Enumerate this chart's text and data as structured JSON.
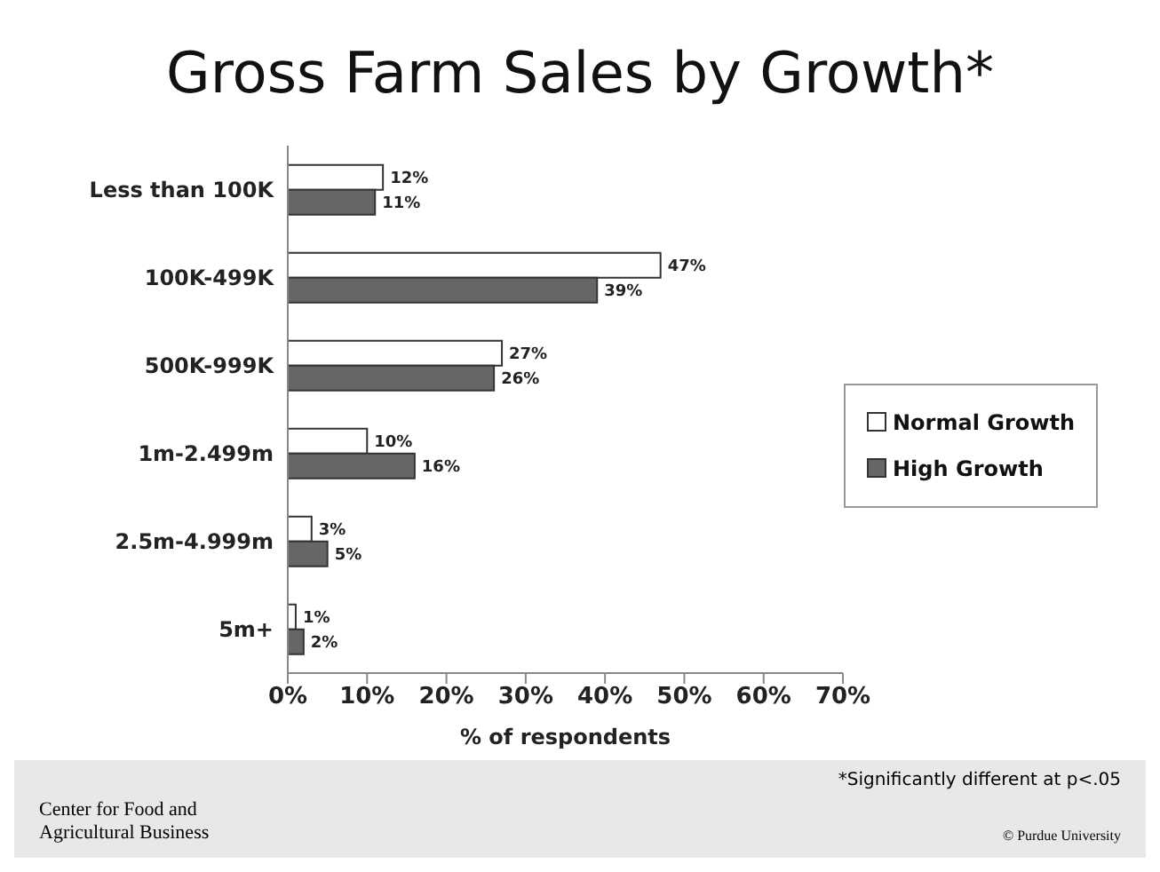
{
  "chart_data": {
    "type": "bar",
    "orientation": "horizontal",
    "title": "Gross Farm Sales by Growth*",
    "xlabel": "% of respondents",
    "categories": [
      "Less than 100K",
      "100K-499K",
      "500K-999K",
      "1m-2.499m",
      "2.5m-4.999m",
      "5m+"
    ],
    "series": [
      {
        "name": "Normal Growth",
        "color": "#ffffff",
        "values": [
          12,
          47,
          27,
          10,
          3,
          1
        ],
        "value_labels": [
          "12%",
          "47%",
          "27%",
          "10%",
          "3%",
          "1%"
        ]
      },
      {
        "name": "High Growth",
        "color": "#666666",
        "values": [
          11,
          39,
          26,
          16,
          5,
          2
        ],
        "value_labels": [
          "11%",
          "39%",
          "26%",
          "16%",
          "5%",
          "2%"
        ]
      }
    ],
    "xlim": [
      0,
      70
    ],
    "xticks": [
      {
        "value": 0,
        "label": "0%"
      },
      {
        "value": 10,
        "label": "10%"
      },
      {
        "value": 20,
        "label": "20%"
      },
      {
        "value": 30,
        "label": "30%"
      },
      {
        "value": 40,
        "label": "40%"
      },
      {
        "value": 50,
        "label": "50%"
      },
      {
        "value": 60,
        "label": "60%"
      },
      {
        "value": 70,
        "label": "70%"
      }
    ],
    "grid": false,
    "legend": "right",
    "annotations": [
      "*Significantly different at p<.05",
      "Center for Food and Agricultural Business",
      "© Purdue University"
    ]
  }
}
